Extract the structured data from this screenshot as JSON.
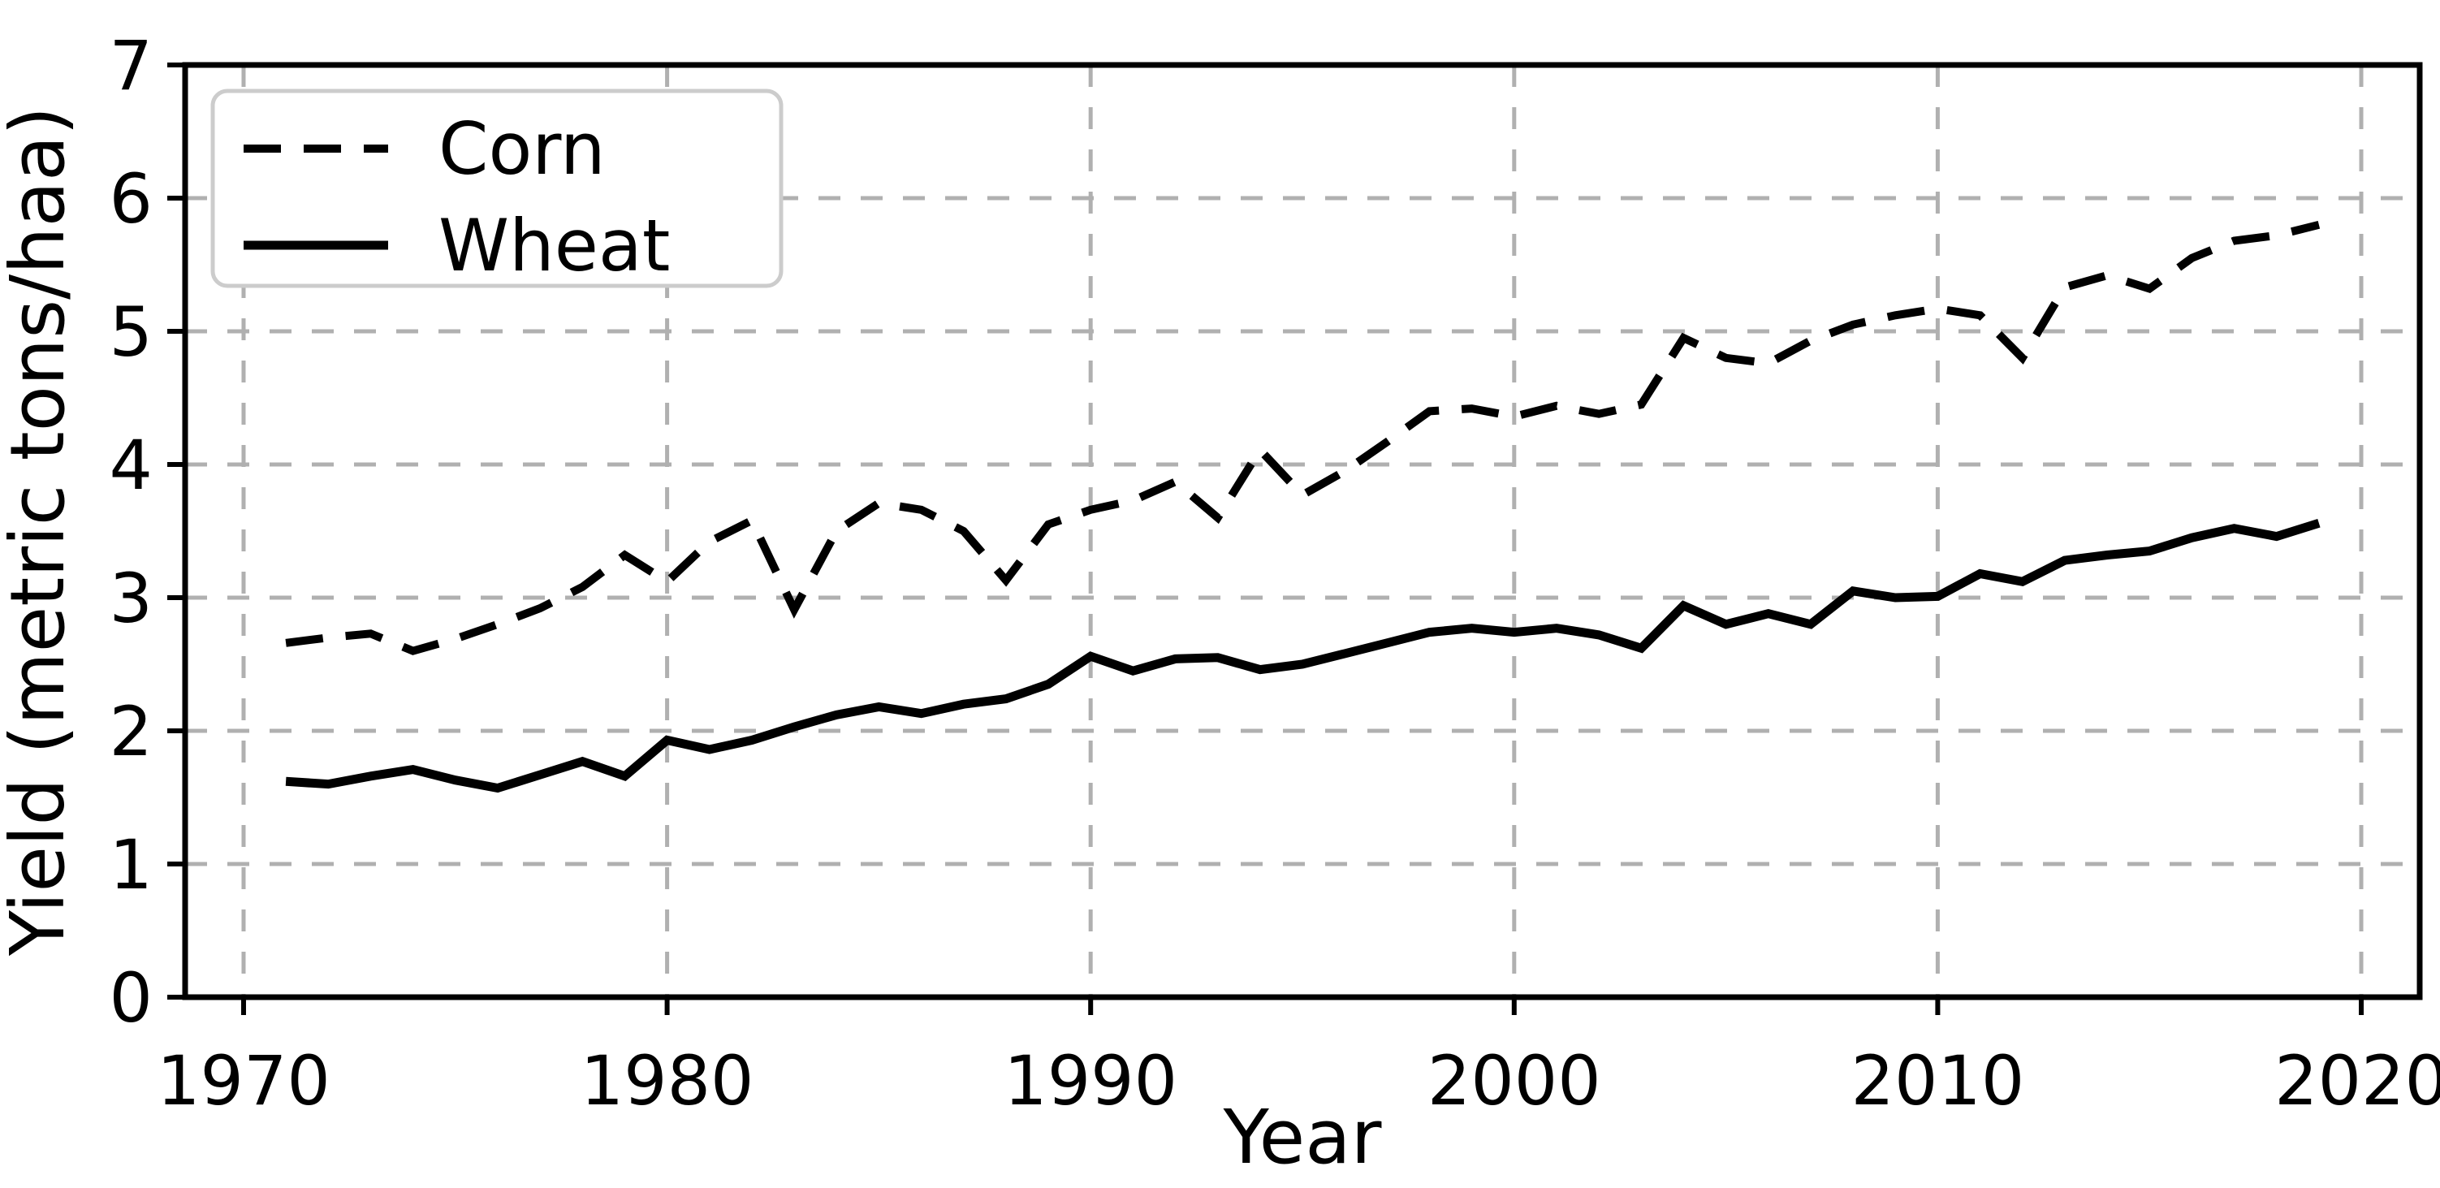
{
  "chart_data": {
    "type": "line",
    "title": "",
    "xlabel": "Year",
    "ylabel": "Yield (metric tons/haa)",
    "xlim": [
      1968.62,
      2021.38
    ],
    "ylim": [
      0,
      7
    ],
    "xticks": [
      1970,
      1980,
      1990,
      2000,
      2010,
      2020
    ],
    "yticks": [
      0,
      1,
      2,
      3,
      4,
      5,
      6,
      7
    ],
    "grid": true,
    "grid_color": "#b0b0b0",
    "line_color": "#000000",
    "background_color": "#ffffff",
    "legend_position": "upper left",
    "x": [
      1971,
      1972,
      1973,
      1974,
      1975,
      1976,
      1977,
      1978,
      1979,
      1980,
      1981,
      1982,
      1983,
      1984,
      1985,
      1986,
      1987,
      1988,
      1989,
      1990,
      1991,
      1992,
      1993,
      1994,
      1995,
      1996,
      1997,
      1998,
      1999,
      2000,
      2001,
      2002,
      2003,
      2004,
      2005,
      2006,
      2007,
      2008,
      2009,
      2010,
      2011,
      2012,
      2013,
      2014,
      2015,
      2016,
      2017,
      2018,
      2019
    ],
    "series": [
      {
        "name": "Corn",
        "style": "dashed",
        "values": [
          2.66,
          2.7,
          2.73,
          2.6,
          2.69,
          2.8,
          2.92,
          3.08,
          3.32,
          3.12,
          3.42,
          3.58,
          2.91,
          3.5,
          3.71,
          3.66,
          3.5,
          3.13,
          3.55,
          3.66,
          3.73,
          3.87,
          3.6,
          4.11,
          3.77,
          3.95,
          4.17,
          4.4,
          4.42,
          4.36,
          4.44,
          4.38,
          4.45,
          4.95,
          4.8,
          4.76,
          4.93,
          5.05,
          5.12,
          5.17,
          5.12,
          4.8,
          5.33,
          5.42,
          5.32,
          5.55,
          5.68,
          5.72,
          5.8
        ]
      },
      {
        "name": "Wheat",
        "style": "solid",
        "values": [
          1.62,
          1.6,
          1.66,
          1.71,
          1.63,
          1.57,
          1.67,
          1.77,
          1.66,
          1.93,
          1.86,
          1.93,
          2.03,
          2.12,
          2.18,
          2.13,
          2.2,
          2.24,
          2.35,
          2.56,
          2.45,
          2.54,
          2.55,
          2.46,
          2.5,
          2.58,
          2.66,
          2.74,
          2.77,
          2.74,
          2.77,
          2.72,
          2.62,
          2.94,
          2.8,
          2.88,
          2.8,
          3.05,
          3.0,
          3.01,
          3.18,
          3.12,
          3.28,
          3.32,
          3.35,
          3.45,
          3.52,
          3.46,
          3.56
        ]
      }
    ]
  },
  "legend": {
    "items": [
      {
        "label": "Corn"
      },
      {
        "label": "Wheat"
      }
    ]
  }
}
